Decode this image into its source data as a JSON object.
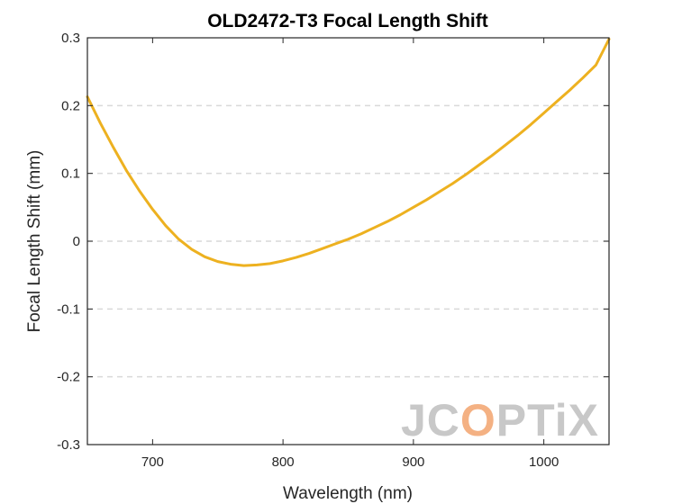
{
  "chart_data": {
    "type": "line",
    "title": "OLD2472-T3 Focal Length Shift",
    "xlabel": "Wavelength (nm)",
    "ylabel": "Focal Length Shift (mm)",
    "xlim": [
      650,
      1050
    ],
    "ylim": [
      -0.3,
      0.3
    ],
    "x_ticks": [
      700,
      800,
      900,
      1000
    ],
    "y_ticks": [
      -0.3,
      -0.2,
      -0.1,
      0,
      0.1,
      0.2,
      0.3
    ],
    "grid": "horizontal dashed",
    "series": [
      {
        "color": "#EDB120",
        "x": [
          650,
          660,
          670,
          680,
          690,
          700,
          710,
          720,
          730,
          740,
          750,
          760,
          770,
          780,
          790,
          800,
          810,
          820,
          830,
          840,
          850,
          860,
          870,
          880,
          890,
          900,
          910,
          920,
          930,
          940,
          950,
          960,
          970,
          980,
          990,
          1000,
          1010,
          1020,
          1030,
          1040,
          1050
        ],
        "y": [
          0.213,
          0.174,
          0.138,
          0.104,
          0.074,
          0.047,
          0.023,
          0.003,
          -0.012,
          -0.023,
          -0.03,
          -0.034,
          -0.036,
          -0.035,
          -0.033,
          -0.029,
          -0.024,
          -0.018,
          -0.011,
          -0.004,
          0.003,
          0.011,
          0.02,
          0.029,
          0.039,
          0.05,
          0.061,
          0.073,
          0.085,
          0.098,
          0.112,
          0.126,
          0.141,
          0.156,
          0.172,
          0.189,
          0.206,
          0.223,
          0.241,
          0.26,
          0.298
        ]
      }
    ]
  },
  "watermark": {
    "part1": "JC",
    "part2": "O",
    "part3": "PTiX"
  }
}
